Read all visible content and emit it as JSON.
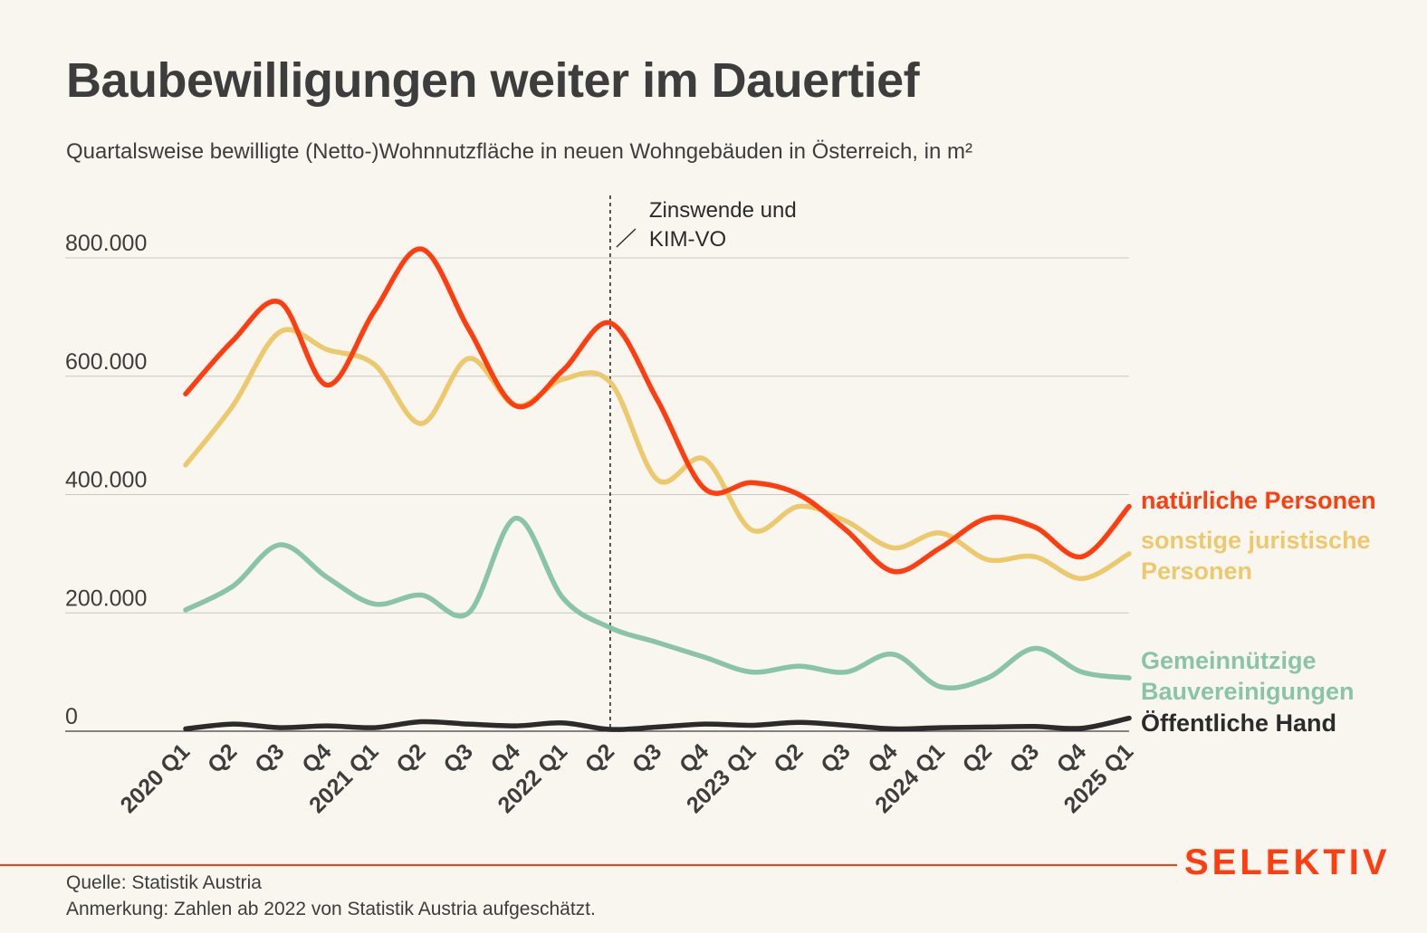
{
  "title": "Baubewilligungen weiter im Dauertief",
  "subtitle": "Quartalsweise bewilligte (Netto-)Wohnnutzfläche in neuen Wohngebäuden in Österreich, in m²",
  "source": "Quelle: Statistik Austria",
  "note": "Anmerkung: Zahlen ab 2022 von Statistik Austria aufgeschätzt.",
  "brand": "SELEKTIV",
  "colors": {
    "background": "#f8f6ef",
    "accent": "#ff3d0f",
    "text": "#3d3d3d",
    "grid": "#c8c8c0"
  },
  "chart_data": {
    "type": "line",
    "categories": [
      "2020 Q1",
      "Q2",
      "Q3",
      "Q4",
      "2021 Q1",
      "Q2",
      "Q3",
      "Q4",
      "2022 Q1",
      "Q2",
      "Q3",
      "Q4",
      "2023 Q1",
      "Q2",
      "Q3",
      "Q4",
      "2024 Q1",
      "Q2",
      "Q3",
      "Q4",
      "2025 Q1"
    ],
    "ylim": [
      0,
      800000
    ],
    "yticks": [
      0,
      200000,
      400000,
      600000,
      800000
    ],
    "ytick_labels": [
      "0",
      "200.000",
      "400.000",
      "600.000",
      "800.000"
    ],
    "grid": true,
    "legend": "direct labels at right end of lines",
    "series": [
      {
        "name": "natürliche Personen",
        "color": "#ff3d0f",
        "values": [
          570000,
          660000,
          725000,
          585000,
          710000,
          815000,
          680000,
          550000,
          610000,
          690000,
          560000,
          410000,
          420000,
          400000,
          340000,
          270000,
          310000,
          360000,
          345000,
          295000,
          380000
        ]
      },
      {
        "name": "sonstige juristische Personen",
        "color": "#edc96e",
        "values": [
          450000,
          550000,
          675000,
          645000,
          620000,
          520000,
          630000,
          550000,
          595000,
          590000,
          425000,
          460000,
          340000,
          380000,
          355000,
          310000,
          335000,
          290000,
          295000,
          258000,
          300000
        ]
      },
      {
        "name": "Gemeinnützige Bauvereinigungen",
        "color": "#8ac4a6",
        "values": [
          205000,
          245000,
          315000,
          260000,
          215000,
          230000,
          200000,
          360000,
          225000,
          175000,
          150000,
          125000,
          100000,
          110000,
          100000,
          130000,
          75000,
          90000,
          140000,
          100000,
          90000
        ]
      },
      {
        "name": "Öffentliche Hand",
        "color": "#2b2b2b",
        "values": [
          4000,
          12000,
          6000,
          9000,
          6000,
          16000,
          12000,
          9000,
          14000,
          3000,
          7000,
          12000,
          10000,
          15000,
          10000,
          4000,
          6000,
          7000,
          8000,
          5000,
          22000
        ]
      }
    ],
    "series_labels": [
      [
        "natürliche Personen"
      ],
      [
        "sonstige juristische",
        "Personen"
      ],
      [
        "Gemeinnützige",
        "Bauvereinigungen"
      ],
      [
        "Öffentliche Hand"
      ]
    ],
    "annotations": [
      {
        "at_category": "Q2",
        "at_index": 9,
        "style": "dashed-vertical-line",
        "lines": [
          "Zinswende und",
          "KIM-VO"
        ]
      }
    ]
  }
}
